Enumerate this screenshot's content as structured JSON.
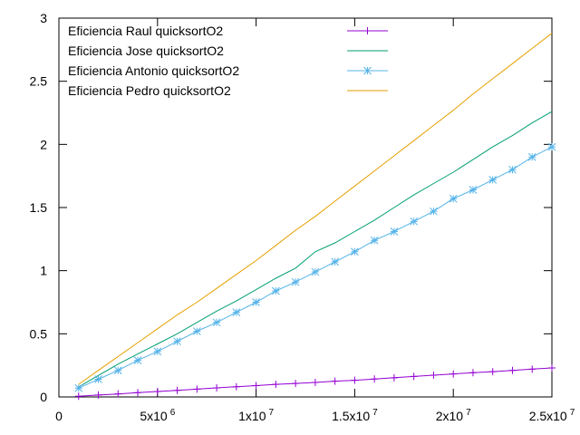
{
  "chart_data": {
    "type": "line",
    "title": "",
    "xlabel": "",
    "ylabel": "",
    "xlim": [
      0,
      25000000
    ],
    "ylim": [
      0,
      3
    ],
    "x_ticks": [
      {
        "value": 0,
        "base": "0",
        "exp": ""
      },
      {
        "value": 5000000,
        "base": "5x10",
        "exp": "6"
      },
      {
        "value": 10000000,
        "base": "1x10",
        "exp": "7"
      },
      {
        "value": 15000000,
        "base": "1.5x10",
        "exp": "7"
      },
      {
        "value": 20000000,
        "base": "2x10",
        "exp": "7"
      },
      {
        "value": 25000000,
        "base": "2.5x10",
        "exp": "7"
      }
    ],
    "y_ticks": [
      {
        "value": 0,
        "label": "0"
      },
      {
        "value": 0.5,
        "label": "0.5"
      },
      {
        "value": 1,
        "label": "1"
      },
      {
        "value": 1.5,
        "label": "1.5"
      },
      {
        "value": 2,
        "label": "2"
      },
      {
        "value": 2.5,
        "label": "2.5"
      },
      {
        "value": 3,
        "label": "3"
      }
    ],
    "grid": false,
    "legend_position": "top-left",
    "x": [
      1000000,
      2000000,
      3000000,
      4000000,
      5000000,
      6000000,
      7000000,
      8000000,
      9000000,
      10000000,
      11000000,
      12000000,
      13000000,
      14000000,
      15000000,
      16000000,
      17000000,
      18000000,
      19000000,
      20000000,
      21000000,
      22000000,
      23000000,
      24000000,
      25000000
    ],
    "series": [
      {
        "name": "Eficiencia Raul quicksortO2",
        "color": "#9400d3",
        "marker": "plus",
        "values": [
          0.005,
          0.015,
          0.024,
          0.034,
          0.043,
          0.052,
          0.062,
          0.072,
          0.081,
          0.09,
          0.1,
          0.107,
          0.115,
          0.125,
          0.132,
          0.142,
          0.152,
          0.162,
          0.172,
          0.182,
          0.192,
          0.2,
          0.21,
          0.22,
          0.23
        ]
      },
      {
        "name": "Eficiencia Jose quicksortO2",
        "color": "#009e73",
        "marker": "none",
        "values": [
          0.08,
          0.17,
          0.26,
          0.34,
          0.42,
          0.5,
          0.59,
          0.68,
          0.76,
          0.85,
          0.94,
          1.02,
          1.15,
          1.22,
          1.31,
          1.4,
          1.5,
          1.6,
          1.69,
          1.78,
          1.88,
          1.98,
          2.07,
          2.17,
          2.26
        ]
      },
      {
        "name": "Eficiencia Antonio quicksortO2",
        "color": "#56b4e9",
        "marker": "star",
        "values": [
          0.07,
          0.14,
          0.21,
          0.29,
          0.36,
          0.44,
          0.52,
          0.59,
          0.67,
          0.75,
          0.84,
          0.91,
          0.99,
          1.07,
          1.15,
          1.24,
          1.31,
          1.39,
          1.47,
          1.57,
          1.64,
          1.72,
          1.8,
          1.9,
          1.98
        ]
      },
      {
        "name": "Eficiencia Pedro quicksortO2",
        "color": "#e69f00",
        "marker": "none",
        "values": [
          0.1,
          0.21,
          0.32,
          0.43,
          0.54,
          0.65,
          0.75,
          0.86,
          0.97,
          1.08,
          1.2,
          1.32,
          1.43,
          1.55,
          1.67,
          1.79,
          1.91,
          2.03,
          2.15,
          2.27,
          2.4,
          2.52,
          2.64,
          2.76,
          2.88
        ]
      }
    ]
  }
}
